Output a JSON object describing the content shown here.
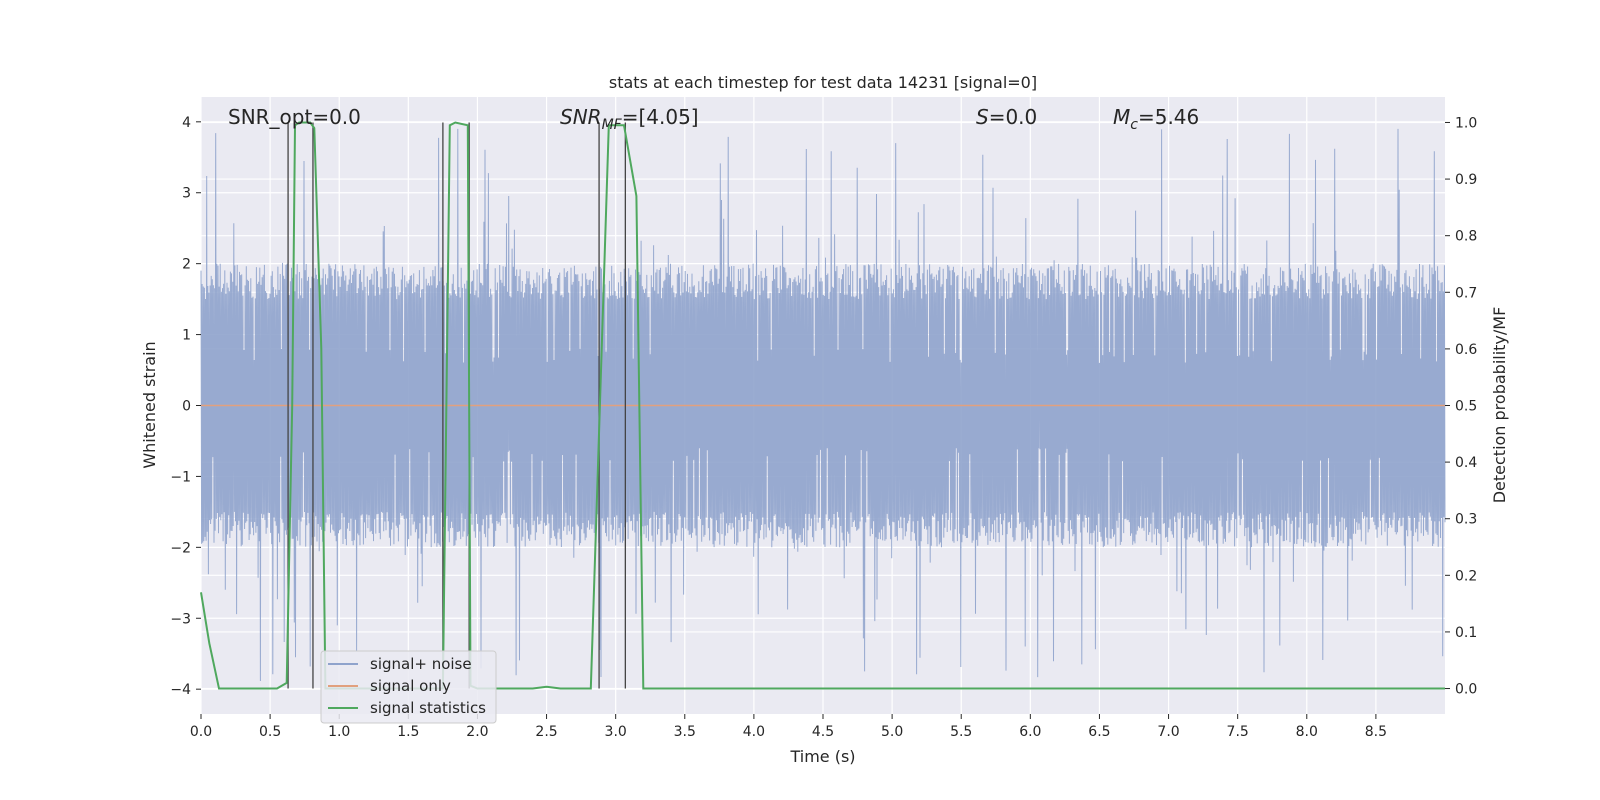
{
  "chart_data": {
    "type": "line",
    "title": "stats at each timestep for test data 14231 [signal=0]",
    "xlabel": "Time (s)",
    "ylabel": "Whitened strain",
    "ylabel_right": "Detection probability/MF",
    "xlim": [
      0.0,
      9.0
    ],
    "ylim": [
      -4.35,
      4.35
    ],
    "ylim_right": [
      -0.045,
      1.045
    ],
    "x_ticks": [
      "0.0",
      "0.5",
      "1.0",
      "1.5",
      "2.0",
      "2.5",
      "3.0",
      "3.5",
      "4.0",
      "4.5",
      "5.0",
      "5.5",
      "6.0",
      "6.5",
      "7.0",
      "7.5",
      "8.0",
      "8.5"
    ],
    "x_tick_values": [
      0,
      0.5,
      1,
      1.5,
      2,
      2.5,
      3,
      3.5,
      4,
      4.5,
      5,
      5.5,
      6,
      6.5,
      7,
      7.5,
      8,
      8.5
    ],
    "y_ticks": [
      "4",
      "3",
      "2",
      "1",
      "0",
      "−1",
      "−2",
      "−3",
      "−4"
    ],
    "y_tick_values": [
      4,
      3,
      2,
      1,
      0,
      -1,
      -2,
      -3,
      -4
    ],
    "y_right_ticks": [
      "1.0",
      "0.9",
      "0.8",
      "0.7",
      "0.6",
      "0.5",
      "0.4",
      "0.3",
      "0.2",
      "0.1",
      "0.0"
    ],
    "y_right_tick_values": [
      1.0,
      0.9,
      0.8,
      0.7,
      0.6,
      0.5,
      0.4,
      0.3,
      0.2,
      0.1,
      0.0
    ],
    "grid": true,
    "legend_position": "lower-left",
    "annotations": {
      "snr_opt": "SNR_opt=0.0",
      "snr_mf_main": "SNR",
      "snr_mf_sub": "MF",
      "snr_mf_value": "=[4.05]",
      "s_main": "S",
      "s_value": "=0.0",
      "mc_main": "M",
      "mc_sub": "c",
      "mc_value": "=5.46"
    },
    "series": [
      {
        "name": "signal+ noise",
        "color": "#8fa3cc",
        "description_axis": "left",
        "noise_envelope": {
          "typical_abs": 2.0,
          "max": 3.95,
          "min": -3.95
        }
      },
      {
        "name": "signal only",
        "color": "#e1a07e",
        "axis": "left",
        "x": [
          0.0,
          9.0
        ],
        "y": [
          0.0,
          0.0
        ]
      },
      {
        "name": "signal statistics",
        "color": "#4fa85e",
        "axis": "right",
        "x": [
          0.0,
          0.06,
          0.13,
          0.55,
          0.62,
          0.66,
          0.68,
          0.71,
          0.79,
          0.82,
          0.87,
          0.9,
          1.0,
          1.2,
          1.4,
          1.6,
          1.75,
          1.8,
          1.84,
          1.93,
          1.95,
          2.0,
          2.2,
          2.4,
          2.5,
          2.6,
          2.82,
          2.86,
          2.95,
          3.06,
          3.15,
          3.2,
          3.25,
          3.5,
          4.0,
          5.0,
          6.0,
          7.0,
          8.0,
          9.0
        ],
        "y": [
          0.17,
          0.08,
          0.0,
          0.0,
          0.01,
          0.5,
          0.995,
          1.0,
          1.0,
          0.99,
          0.6,
          0.0,
          0.0,
          0.0,
          0.0,
          0.0,
          0.0,
          0.995,
          1.0,
          0.995,
          0.005,
          0.0,
          0.0,
          0.0,
          0.003,
          0.0,
          0.0,
          0.3,
          0.995,
          0.995,
          0.87,
          0.0,
          0.0,
          0.0,
          0.0,
          0.0,
          0.0,
          0.0,
          0.0,
          0.0
        ]
      }
    ],
    "vertical_markers": [
      0.63,
      0.81,
      1.75,
      1.94,
      2.88,
      3.07
    ]
  }
}
